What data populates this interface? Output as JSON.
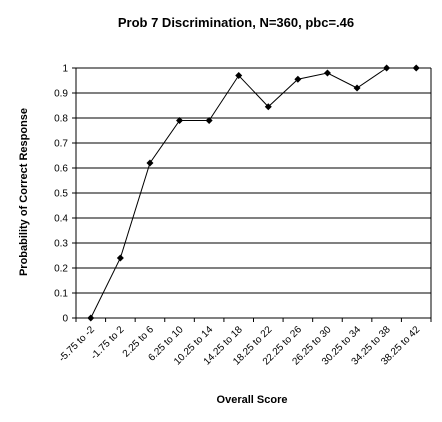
{
  "chart_data": {
    "type": "line",
    "title": "Prob 7 Discrimination, N=360, pbc=.46",
    "xlabel": "Overall Score",
    "ylabel": "Probability of Correct Response",
    "categories": [
      "-5.75 to -2",
      "-1.75 to 2",
      "2.25 to 6",
      "6.25 to 10",
      "10.25 to 14",
      "14.25 to 18",
      "18.25 to 22",
      "22.25 to 26",
      "26.25 to 30",
      "30.25 to 34",
      "34.25 to 38",
      "38.25 to 42"
    ],
    "x_tick_labels": [
      "-5.75 to -2",
      "-1.75 to 2",
      "2.25 to 6",
      "6.25 to 10",
      "10.25 to 14",
      "14.25 to 18",
      "18.25 to 22",
      "22.25 to 26",
      "26.25 to 30",
      "30.25 to 34",
      "34.25 to 38",
      "38.25 to 42"
    ],
    "values": [
      0,
      0.24,
      0.62,
      0.79,
      0.79,
      0.97,
      0.845,
      0.955,
      0.98,
      0.92,
      1.0,
      1.0
    ],
    "ylim": [
      0,
      1
    ],
    "y_ticks": [
      "0",
      "0.1",
      "0.2",
      "0.3",
      "0.4",
      "0.5",
      "0.6",
      "0.7",
      "0.8",
      "0.9",
      "1"
    ],
    "grid": "horizontal",
    "legend": "none",
    "marker": "diamond",
    "line_color": "#000000"
  }
}
